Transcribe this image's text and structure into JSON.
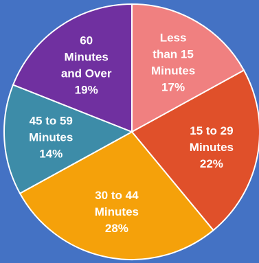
{
  "chart_data": {
    "type": "pie",
    "categories": [
      "Less than 15 Minutes",
      "15 to 29 Minutes",
      "30 to 44 Minutes",
      "45 to 59 Minutes",
      "60 Minutes and Over"
    ],
    "values": [
      17,
      22,
      28,
      14,
      19
    ],
    "label_lines": [
      [
        "Less",
        "than 15",
        "Minutes",
        "17%"
      ],
      [
        "15 to 29",
        "Minutes",
        "22%"
      ],
      [
        "30 to 44",
        "Minutes",
        "28%"
      ],
      [
        "45 to 59",
        "Minutes",
        "14%"
      ],
      [
        "60",
        "Minutes",
        "and Over",
        "19%"
      ]
    ],
    "colors": [
      "#f08080",
      "#e0502a",
      "#f5a10a",
      "#3d8ca8",
      "#7030a0"
    ],
    "background": "#4472c4",
    "title": "",
    "legend": "none"
  }
}
